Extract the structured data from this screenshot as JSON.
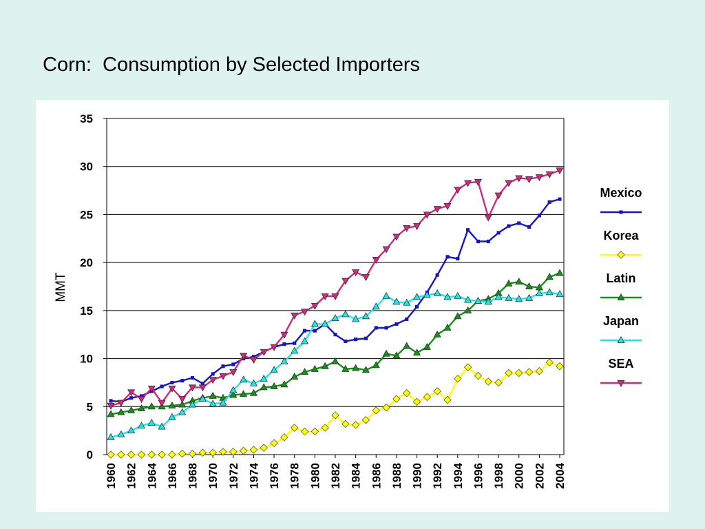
{
  "slide": {
    "title": "Corn:  Consumption by Selected Importers"
  },
  "chart_data": {
    "type": "line",
    "title": "",
    "xlabel": "",
    "ylabel": "MMT",
    "ylim": [
      0,
      35
    ],
    "yticks": [
      0,
      5,
      10,
      15,
      20,
      25,
      30,
      35
    ],
    "xlim": [
      1960,
      2004
    ],
    "xticks": [
      "1960",
      "1962",
      "1964",
      "1966",
      "1968",
      "1970",
      "1972",
      "1974",
      "1976",
      "1978",
      "1980",
      "1982",
      "1984",
      "1986",
      "1988",
      "1990",
      "1992",
      "1994",
      "1996",
      "1998",
      "2000",
      "2002",
      "2004"
    ],
    "grid": "horizontal",
    "legend_position": "right",
    "x": [
      1960,
      1961,
      1962,
      1963,
      1964,
      1965,
      1966,
      1967,
      1968,
      1969,
      1970,
      1971,
      1972,
      1973,
      1974,
      1975,
      1976,
      1977,
      1978,
      1979,
      1980,
      1981,
      1982,
      1983,
      1984,
      1985,
      1986,
      1987,
      1988,
      1989,
      1990,
      1991,
      1992,
      1993,
      1994,
      1995,
      1996,
      1997,
      1998,
      1999,
      2000,
      2001,
      2002,
      2003,
      2004
    ],
    "series": [
      {
        "name": "Mexico",
        "color": "#1414c8",
        "marker": "square",
        "values": [
          5.6,
          5.5,
          5.9,
          6.1,
          6.6,
          7.1,
          7.5,
          7.7,
          8.0,
          7.4,
          8.4,
          9.2,
          9.4,
          10.0,
          10.2,
          10.7,
          11.2,
          11.5,
          11.6,
          12.9,
          12.9,
          13.6,
          12.5,
          11.8,
          12.0,
          12.1,
          13.2,
          13.2,
          13.6,
          14.1,
          15.4,
          16.9,
          18.7,
          20.6,
          20.4,
          23.4,
          22.2,
          22.2,
          23.1,
          23.8,
          24.1,
          23.7,
          24.9,
          26.3,
          26.6
        ]
      },
      {
        "name": "Korea",
        "color": "#ffff00",
        "marker": "diamond",
        "values": [
          0.0,
          0.0,
          0.0,
          0.0,
          0.0,
          0.0,
          0.0,
          0.1,
          0.1,
          0.2,
          0.2,
          0.3,
          0.3,
          0.4,
          0.5,
          0.7,
          1.2,
          1.8,
          2.8,
          2.4,
          2.4,
          2.8,
          4.1,
          3.2,
          3.1,
          3.6,
          4.6,
          4.9,
          5.8,
          6.4,
          5.5,
          6.0,
          6.6,
          5.7,
          7.9,
          9.1,
          8.2,
          7.6,
          7.5,
          8.5,
          8.5,
          8.6,
          8.7,
          9.6,
          9.2
        ]
      },
      {
        "name": "Latin",
        "color": "#169116",
        "marker": "triangle-up",
        "values": [
          4.2,
          4.4,
          4.6,
          4.8,
          5.0,
          5.0,
          5.1,
          5.2,
          5.6,
          5.9,
          6.1,
          5.9,
          6.2,
          6.3,
          6.4,
          7.0,
          7.1,
          7.3,
          8.1,
          8.6,
          8.9,
          9.2,
          9.7,
          8.9,
          9.0,
          8.8,
          9.3,
          10.5,
          10.3,
          11.3,
          10.6,
          11.2,
          12.5,
          13.2,
          14.4,
          15.0,
          16.0,
          16.2,
          16.8,
          17.8,
          18.0,
          17.5,
          17.4,
          18.5,
          18.9
        ]
      },
      {
        "name": "Japan",
        "color": "#1ee6e6",
        "marker": "triangle-up",
        "values": [
          1.8,
          2.1,
          2.5,
          3.0,
          3.3,
          2.9,
          3.9,
          4.4,
          5.2,
          5.8,
          5.3,
          5.4,
          6.7,
          7.8,
          7.4,
          7.9,
          8.8,
          9.7,
          10.8,
          11.8,
          13.6,
          13.6,
          14.2,
          14.6,
          14.1,
          14.4,
          15.4,
          16.5,
          15.9,
          15.8,
          16.4,
          16.6,
          16.8,
          16.4,
          16.5,
          16.1,
          16.0,
          15.9,
          16.4,
          16.3,
          16.2,
          16.3,
          16.8,
          16.9,
          16.7
        ]
      },
      {
        "name": "SEA",
        "color": "#d2287d",
        "marker": "triangle-down",
        "values": [
          5.1,
          5.4,
          6.5,
          5.8,
          6.9,
          5.4,
          6.9,
          5.8,
          7.0,
          7.0,
          7.8,
          8.2,
          8.6,
          10.3,
          9.9,
          10.7,
          11.2,
          12.5,
          14.5,
          14.9,
          15.5,
          16.5,
          16.5,
          18.1,
          19.0,
          18.5,
          20.3,
          21.4,
          22.7,
          23.6,
          23.8,
          25.0,
          25.6,
          25.9,
          27.6,
          28.3,
          28.4,
          24.7,
          27.0,
          28.3,
          28.8,
          28.7,
          28.9,
          29.2,
          29.6
        ]
      }
    ]
  }
}
